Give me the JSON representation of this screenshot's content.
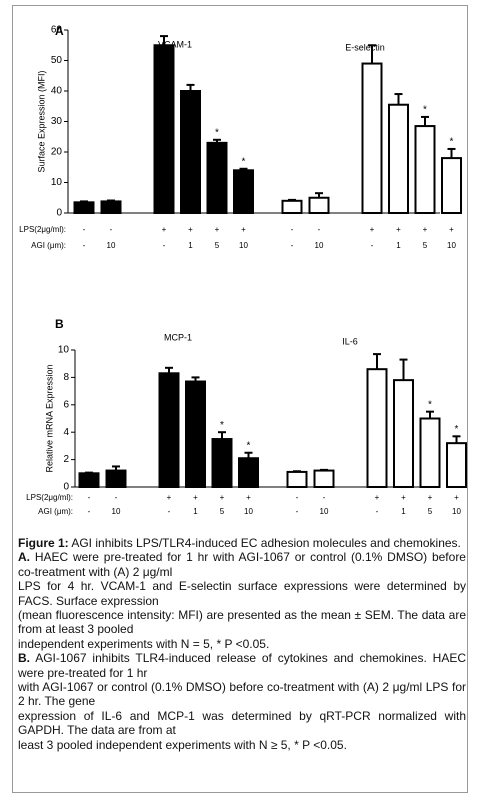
{
  "chart_data": [
    {
      "type": "bar",
      "panel": "A",
      "ylabel": "Surface Expression (MFI)",
      "ylim": [
        0,
        60
      ],
      "yticks": [
        0,
        10,
        20,
        30,
        40,
        50,
        60
      ],
      "row_labels": {
        "lps": "LPS(2μg/ml):",
        "agi": "AGI (μm):"
      },
      "lps": [
        "-",
        "-",
        "+",
        "+",
        "+",
        "+"
      ],
      "agi": [
        "-",
        "10",
        "-",
        "1",
        "5",
        "10"
      ],
      "series": [
        {
          "name": "VCAM-1",
          "color": "#000000",
          "edgecolor": "#000000",
          "values": [
            3.5,
            3.8,
            55,
            40,
            23,
            14
          ],
          "errors": [
            0.3,
            0.3,
            3,
            2,
            1,
            0.5
          ],
          "markers": [
            null,
            null,
            null,
            null,
            "*",
            "*"
          ]
        },
        {
          "name": "E-selectin",
          "color": "#ffffff",
          "edgecolor": "#000000",
          "values": [
            4,
            5,
            49,
            35.5,
            28.5,
            18
          ],
          "errors": [
            0.3,
            1.5,
            6,
            3.5,
            3,
            3
          ],
          "markers": [
            null,
            null,
            null,
            null,
            "*",
            "*"
          ]
        }
      ]
    },
    {
      "type": "bar",
      "panel": "B",
      "ylabel": "Relative mRNA Expression",
      "ylim": [
        0,
        10
      ],
      "yticks": [
        0,
        2,
        4,
        6,
        8,
        10
      ],
      "row_labels": {
        "lps": "LPS(2μg/ml):",
        "agi": "AGI (μm):"
      },
      "lps": [
        "-",
        "-",
        "+",
        "+",
        "+",
        "+"
      ],
      "agi": [
        "-",
        "10",
        "-",
        "1",
        "5",
        "10"
      ],
      "series": [
        {
          "name": "MCP-1",
          "color": "#000000",
          "edgecolor": "#000000",
          "values": [
            1.0,
            1.2,
            8.3,
            7.7,
            3.5,
            2.1
          ],
          "errors": [
            0.05,
            0.3,
            0.4,
            0.3,
            0.5,
            0.4
          ],
          "markers": [
            null,
            null,
            null,
            null,
            "*",
            "*"
          ]
        },
        {
          "name": "IL-6",
          "color": "#ffffff",
          "edgecolor": "#000000",
          "values": [
            1.1,
            1.2,
            8.6,
            7.8,
            5.0,
            3.2
          ],
          "errors": [
            0.05,
            0.05,
            1.1,
            1.5,
            0.5,
            0.5
          ],
          "markers": [
            null,
            null,
            null,
            null,
            "*",
            "*"
          ]
        }
      ]
    }
  ],
  "caption": {
    "title": "Figure 1:",
    "text": "AGI inhibits LPS/TLR4-induced EC adhesion molecules and chemokines.",
    "paragraphs": [
      {
        "label": "A.",
        "segments": [
          "HAEC were pre-treated for 1 hr with AGI-1067 or control (0.1% DMSO) before co-treatment with (A) 2 μg/ml",
          "LPS for 4 hr. VCAM-1 and E-selectin surface expressions were determined by FACS. Surface expression",
          "(mean fluorescence intensity: MFI) are presented as the mean ± SEM. The data are from at least 3 pooled",
          "independent experiments with N = 5, * P <0.05."
        ]
      },
      {
        "label": "B.",
        "segments": [
          "AGI-1067 inhibits TLR4-induced release of cytokines and chemokines. HAEC were pre-treated for 1 hr",
          "with AGI-1067 or control (0.1% DMSO) before co-treatment with (A) 2 μg/ml LPS for 2 hr. The gene",
          "expression of IL-6 and MCP-1 was determined by qRT-PCR normalized with GAPDH. The data are from at",
          "least 3 pooled independent experiments with N ≥ 5, * P <0.05."
        ]
      }
    ]
  }
}
